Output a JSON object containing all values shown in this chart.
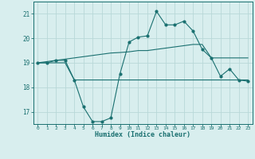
{
  "xlabel": "Humidex (Indice chaleur)",
  "x": [
    0,
    1,
    2,
    3,
    4,
    5,
    6,
    7,
    8,
    9,
    10,
    11,
    12,
    13,
    14,
    15,
    16,
    17,
    18,
    19,
    20,
    21,
    22,
    23
  ],
  "y_main": [
    19.0,
    19.0,
    19.1,
    19.1,
    18.3,
    17.2,
    16.6,
    16.6,
    16.75,
    18.55,
    19.85,
    20.05,
    20.1,
    21.1,
    20.55,
    20.55,
    20.7,
    20.3,
    19.55,
    19.2,
    18.45,
    18.75,
    18.3,
    18.25
  ],
  "y_max": [
    19.0,
    19.05,
    19.1,
    19.15,
    19.2,
    19.25,
    19.3,
    19.35,
    19.4,
    19.42,
    19.45,
    19.5,
    19.5,
    19.55,
    19.6,
    19.65,
    19.7,
    19.75,
    19.75,
    19.2,
    19.2,
    19.2,
    19.2,
    19.2
  ],
  "y_min": [
    19.0,
    19.0,
    19.0,
    19.0,
    18.3,
    18.3,
    18.3,
    18.3,
    18.3,
    18.3,
    18.3,
    18.3,
    18.3,
    18.3,
    18.3,
    18.3,
    18.3,
    18.3,
    18.3,
    18.3,
    18.3,
    18.3,
    18.3,
    18.3
  ],
  "line_color": "#1a7070",
  "bg_color": "#d8eeee",
  "grid_color": "#b8d8d8",
  "ylim": [
    16.5,
    21.5
  ],
  "yticks": [
    17,
    18,
    19,
    20,
    21
  ],
  "xlim": [
    -0.5,
    23.5
  ]
}
